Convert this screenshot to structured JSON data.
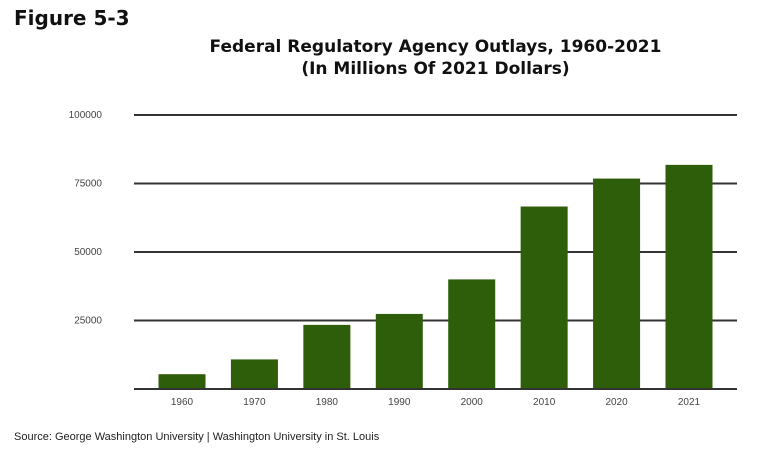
{
  "figure_label": "Figure 5-3",
  "source": "Source: George Washington University | Washington University in St. Louis",
  "chart_data": {
    "type": "bar",
    "title": "Federal Regulatory Agency Outlays, 1960-2021",
    "subtitle": "(In Millions Of 2021 Dollars)",
    "xlabel": "",
    "ylabel": "",
    "categories": [
      "1960",
      "1970",
      "1980",
      "1990",
      "2000",
      "2010",
      "2020",
      "2021"
    ],
    "values": [
      5400,
      10800,
      23400,
      27400,
      40000,
      66600,
      76800,
      81800
    ],
    "ylim": [
      0,
      100000
    ],
    "yticks": [
      25000,
      50000,
      75000,
      100000
    ],
    "ytick_labels": [
      "25000",
      "50000",
      "75000",
      "100000"
    ],
    "grid": true,
    "bar_color": "#2e5e0a",
    "grid_color": "#333333"
  }
}
